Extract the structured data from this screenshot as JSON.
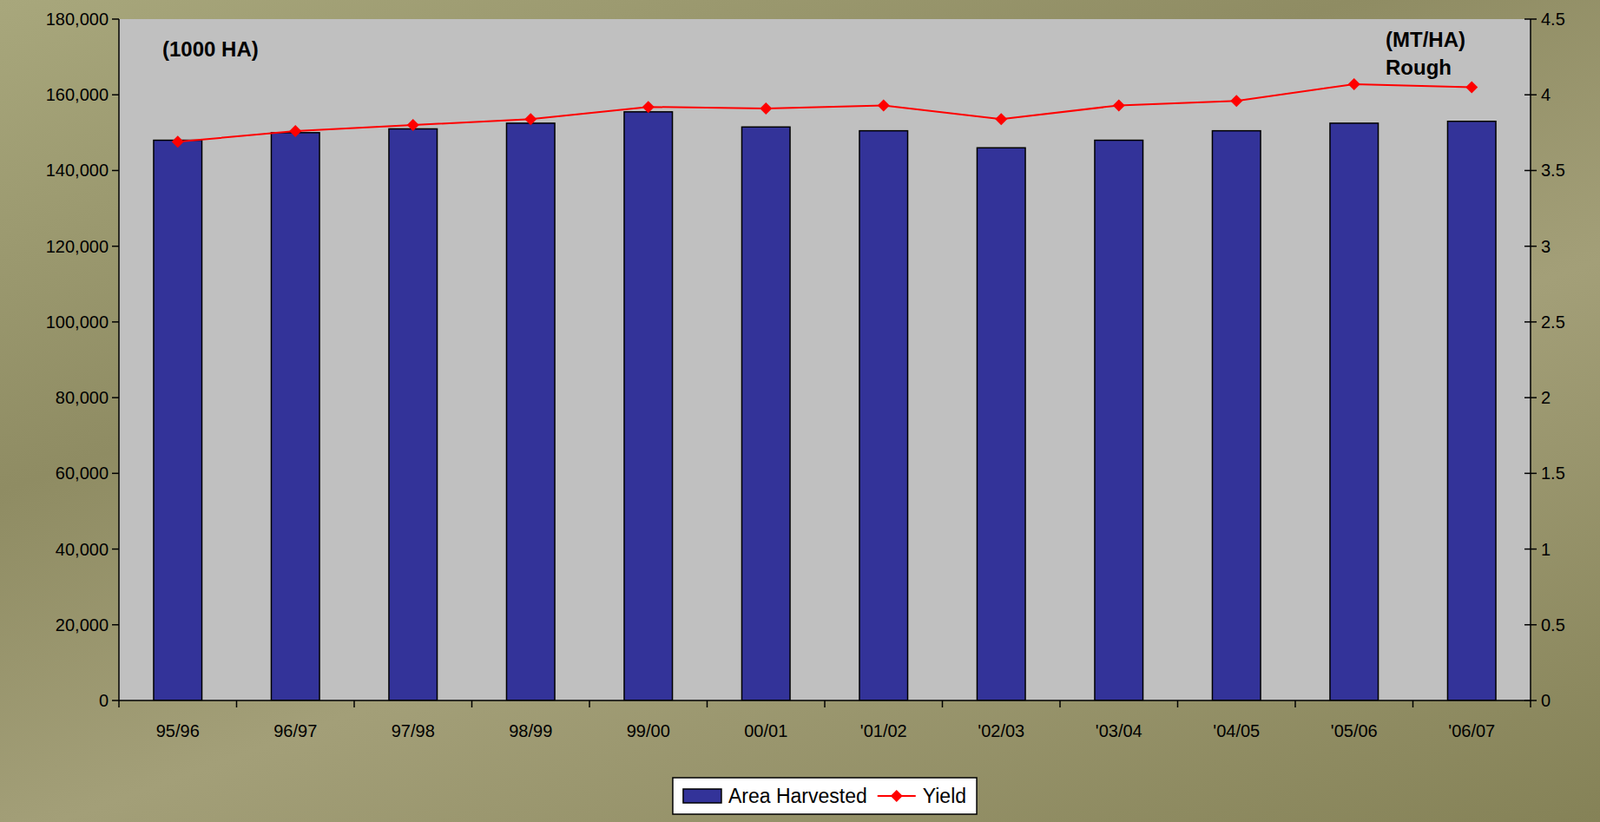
{
  "chart_data": {
    "type": "bar",
    "categories": [
      "95/96",
      "96/97",
      "97/98",
      "98/99",
      "99/00",
      "00/01",
      "'01/02",
      "'02/03",
      "'03/04",
      "'04/05",
      "'05/06",
      "'06/07"
    ],
    "series": [
      {
        "name": "Area Harvested",
        "type": "bar",
        "color": "#333399",
        "values": [
          148000,
          150000,
          151000,
          152500,
          155500,
          151500,
          150500,
          146000,
          148000,
          150500,
          152500,
          153000
        ]
      },
      {
        "name": "Yield",
        "type": "line",
        "axis": "y2",
        "color": "#ff0000",
        "marker": "diamond",
        "values": [
          3.69,
          3.76,
          3.8,
          3.84,
          3.92,
          3.91,
          3.93,
          3.84,
          3.93,
          3.96,
          4.07,
          4.05
        ]
      }
    ],
    "ylim": [
      0,
      180000
    ],
    "yticks": [
      0,
      {
        "value": 20000,
        "label": "20,000"
      },
      {
        "value": 40000,
        "label": "40,000"
      },
      {
        "value": 60000,
        "label": "60,000"
      },
      {
        "value": 80000,
        "label": "80,000"
      },
      {
        "value": 100000,
        "label": "100,000"
      },
      {
        "value": 120000,
        "label": "120,000"
      },
      {
        "value": 140000,
        "label": "140,000"
      },
      {
        "value": 160000,
        "label": "160,000"
      },
      {
        "value": 180000,
        "label": "180,000"
      }
    ],
    "y2lim": [
      0,
      4.5
    ],
    "y2ticks": [
      0,
      0.5,
      1,
      1.5,
      2,
      2.5,
      3,
      3.5,
      4,
      4.5
    ],
    "annotations": [
      "(1000 HA)",
      "(MT/HA)",
      "Rough"
    ],
    "grid": false,
    "legend": "bottom"
  }
}
